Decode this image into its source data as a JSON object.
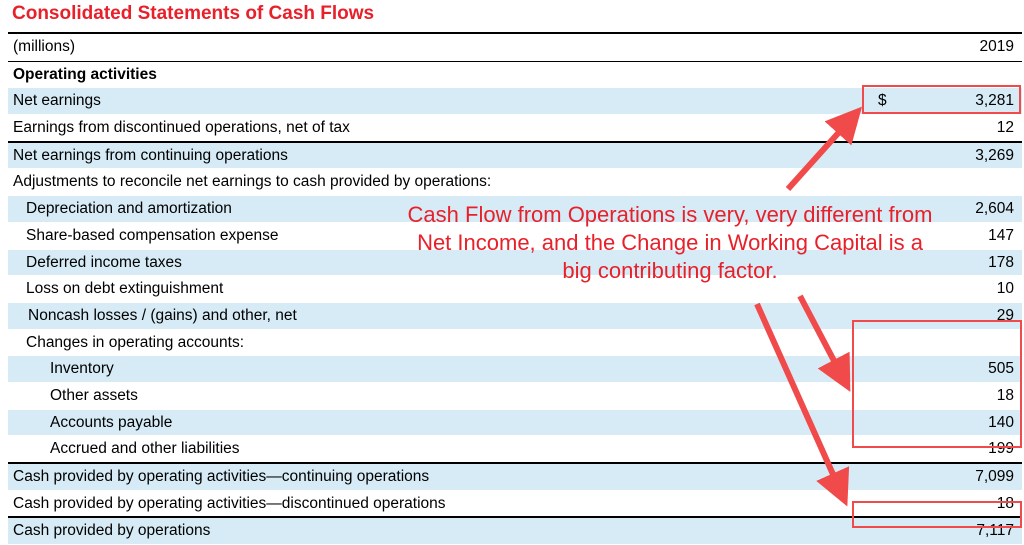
{
  "title": "Consolidated Statements of Cash Flows",
  "header": {
    "units": "(millions)",
    "year": "2019"
  },
  "section": "Operating activities",
  "rows": [
    {
      "label": "Net earnings",
      "currency": "$",
      "value": "3,281"
    },
    {
      "label": "Earnings from discontinued operations, net of tax",
      "value": "12"
    },
    {
      "label": "Net earnings from continuing operations",
      "value": "3,269"
    },
    {
      "label": "Adjustments to reconcile net earnings to cash provided by operations:",
      "value": ""
    },
    {
      "label": "Depreciation and amortization",
      "value": "2,604"
    },
    {
      "label": "Share-based compensation expense",
      "value": "147"
    },
    {
      "label": "Deferred income taxes",
      "value": "178"
    },
    {
      "label": "Loss on debt extinguishment",
      "value": "10"
    },
    {
      "label": "Noncash losses / (gains) and other, net",
      "value": "29"
    },
    {
      "label": "Changes in operating accounts:",
      "value": ""
    },
    {
      "label": "Inventory",
      "value": "505"
    },
    {
      "label": "Other assets",
      "value": "18"
    },
    {
      "label": "Accounts payable",
      "value": "140"
    },
    {
      "label": "Accrued and other liabilities",
      "value": "199"
    },
    {
      "label": "Cash provided by operating activities—continuing operations",
      "value": "7,099"
    },
    {
      "label": "Cash provided by operating activities—discontinued operations",
      "value": "18"
    },
    {
      "label": "Cash provided by operations",
      "value": "7,117"
    }
  ],
  "annotation": "Cash Flow from Operations is very, very different from Net Income, and the Change in Working Capital is a big contributing factor.",
  "colors": {
    "title": "#e8202a",
    "shade": "#d6ebf5",
    "annotation": "#f04a4a"
  }
}
